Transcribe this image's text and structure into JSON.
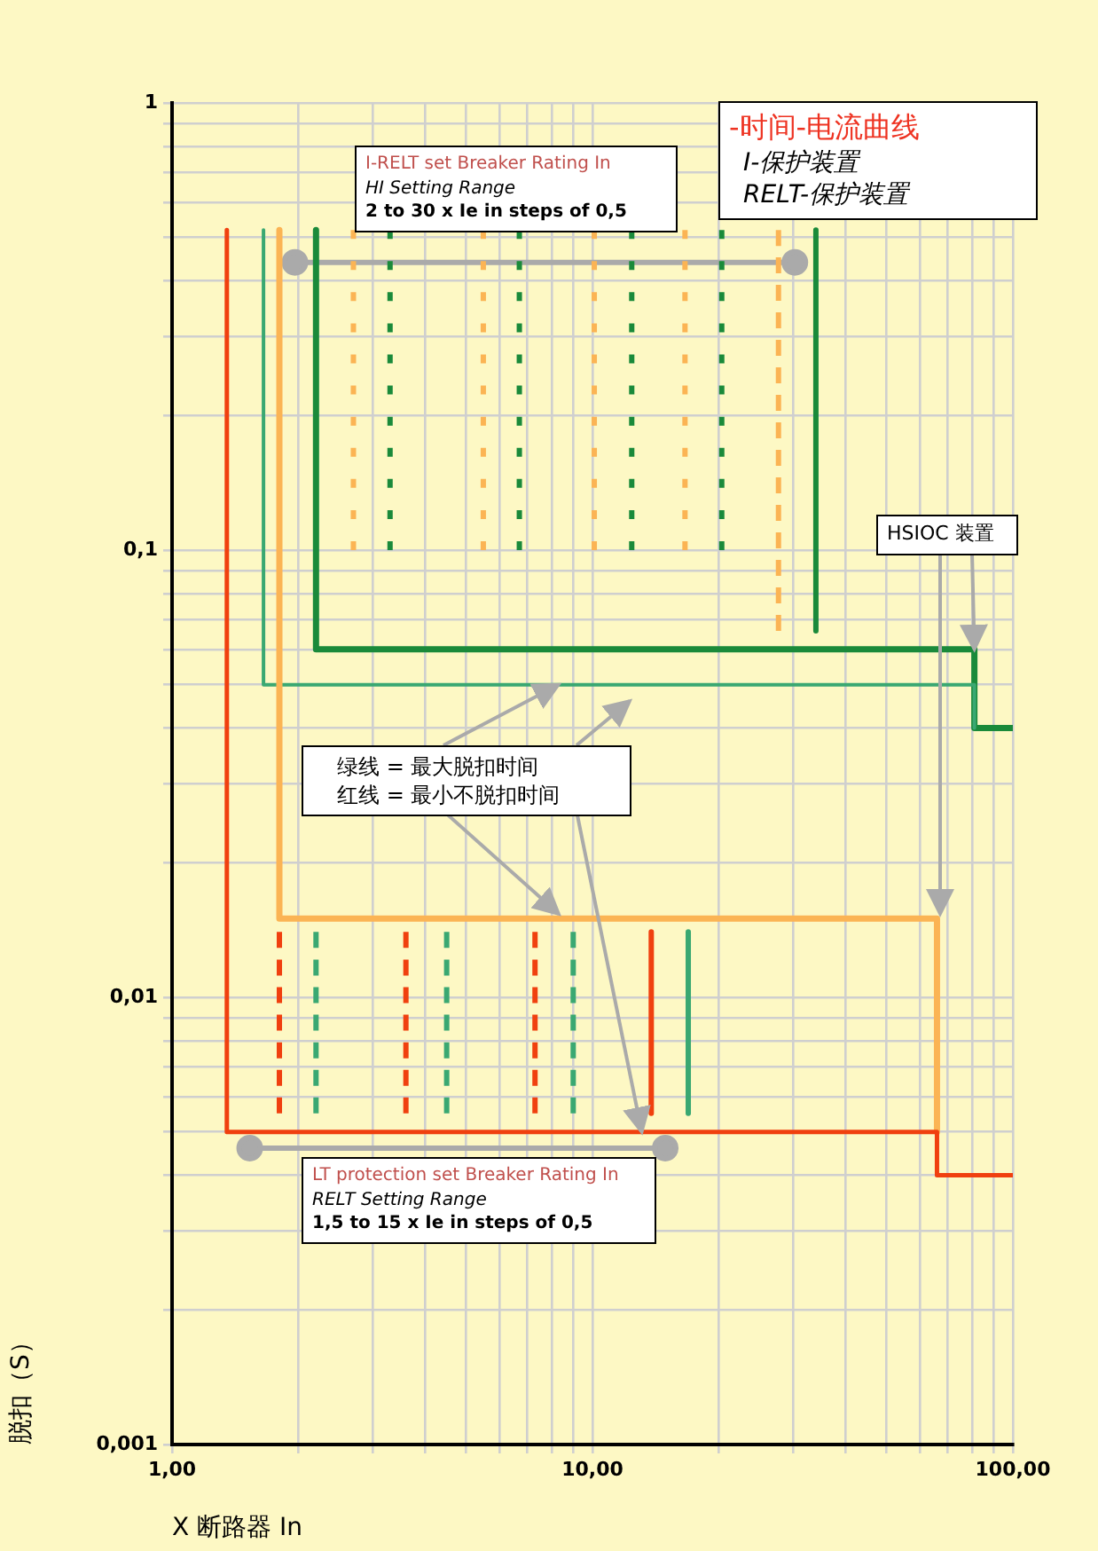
{
  "chart_data": {
    "type": "line",
    "title": "-时间-电流曲线",
    "xlabel": "X 断路器 In",
    "ylabel": "脱扣（S）",
    "annotations": [
      "I-保护装置",
      "RELT-保护装置",
      "I-RELT set Breaker Rating In",
      "HI Setting Range",
      "2 to 30 x Ie in steps of 0,5",
      {
        "text": "HSIOC 装置",
        "x": 81,
        "y": 0.06
      },
      {
        "text": "绿线 = 最大脱扣时间",
        "x": 8.3,
        "y": 0.05
      },
      {
        "text": "红线 = 最小不脱扣时间",
        "x": 13.1,
        "y": 0.005
      },
      "LT protection set  Breaker Rating In",
      "RELT Setting Range",
      "1,5 to 15 x Ie in steps of 0,5"
    ],
    "log": "xy",
    "grid": true,
    "legend": false,
    "marker": "none",
    "xlim": [
      1,
      100
    ],
    "ylim": [
      0.001,
      1
    ],
    "xticks": [
      {
        "value": 1,
        "label": "1,00"
      },
      {
        "value": 2,
        "label": null
      },
      {
        "value": 3,
        "label": null
      },
      {
        "value": 4,
        "label": null
      },
      {
        "value": 5,
        "label": null
      },
      {
        "value": 6,
        "label": null
      },
      {
        "value": 7,
        "label": null
      },
      {
        "value": 8,
        "label": null
      },
      {
        "value": 9,
        "label": null
      },
      {
        "value": 10,
        "label": "10,00"
      },
      {
        "value": 20,
        "label": null
      },
      {
        "value": 30,
        "label": null
      },
      {
        "value": 40,
        "label": null
      },
      {
        "value": 50,
        "label": null
      },
      {
        "value": 60,
        "label": null
      },
      {
        "value": 70,
        "label": null
      },
      {
        "value": 80,
        "label": null
      },
      {
        "value": 90,
        "label": null
      },
      {
        "value": 100,
        "label": "100,00"
      }
    ],
    "yticks": [
      {
        "value": 0.001,
        "label": "0,001"
      },
      {
        "value": 0.002,
        "label": null
      },
      {
        "value": 0.003,
        "label": null
      },
      {
        "value": 0.004,
        "label": null
      },
      {
        "value": 0.005,
        "label": null
      },
      {
        "value": 0.006,
        "label": null
      },
      {
        "value": 0.007,
        "label": null
      },
      {
        "value": 0.008,
        "label": null
      },
      {
        "value": 0.009,
        "label": null
      },
      {
        "value": 0.01,
        "label": "0,01"
      },
      {
        "value": 0.02,
        "label": null
      },
      {
        "value": 0.03,
        "label": null
      },
      {
        "value": 0.04,
        "label": null
      },
      {
        "value": 0.05,
        "label": null
      },
      {
        "value": 0.06,
        "label": null
      },
      {
        "value": 0.07,
        "label": null
      },
      {
        "value": 0.08,
        "label": null
      },
      {
        "value": 0.09,
        "label": null
      },
      {
        "value": 0.1,
        "label": "0,1"
      },
      {
        "value": 0.2,
        "label": null
      },
      {
        "value": 0.3,
        "label": null
      },
      {
        "value": 0.4,
        "label": null
      },
      {
        "value": 0.5,
        "label": null
      },
      {
        "value": 0.6,
        "label": null
      },
      {
        "value": 0.7,
        "label": null
      },
      {
        "value": 0.8,
        "label": null
      },
      {
        "value": 0.9,
        "label": null
      },
      {
        "value": 1,
        "label": "1"
      }
    ],
    "series": [
      {
        "type": "line",
        "color": "#f0400f",
        "x": [
          1.35,
          1.35,
          66,
          66,
          100
        ],
        "values": [
          0.52,
          0.005,
          0.005,
          0.004,
          0.004
        ]
      },
      {
        "type": "line",
        "color": "#fbb454",
        "x": [
          1.8,
          1.8,
          66,
          66
        ],
        "values": [
          0.52,
          0.015,
          0.015,
          0.005
        ]
      },
      {
        "type": "line",
        "color": "#3aa872",
        "x": [
          1.65,
          1.65,
          81,
          81
        ],
        "values": [
          0.52,
          0.05,
          0.05,
          0.04
        ]
      },
      {
        "type": "line",
        "color": "#1a8a3a",
        "x": [
          2.2,
          2.2,
          81,
          81,
          100
        ],
        "values": [
          0.52,
          0.06,
          0.06,
          0.04,
          0.04
        ]
      },
      {
        "type": "line",
        "color": "#1a8a3a",
        "x": [
          34,
          34
        ],
        "values": [
          0.52,
          0.066
        ]
      },
      {
        "type": "line",
        "color": "#fbb454",
        "line_style": "dashed",
        "x": [
          27.7,
          27.7
        ],
        "values": [
          0.52,
          0.066
        ]
      },
      {
        "type": "line",
        "color": "#fbb454",
        "line_style": "dotted",
        "x": [
          2.7,
          2.7
        ],
        "values": [
          0.52,
          0.1
        ]
      },
      {
        "type": "line",
        "color": "#fbb454",
        "line_style": "dotted",
        "x": [
          5.5,
          5.5
        ],
        "values": [
          0.52,
          0.1
        ]
      },
      {
        "type": "line",
        "color": "#fbb454",
        "line_style": "dotted",
        "x": [
          10.1,
          10.1
        ],
        "values": [
          0.52,
          0.1
        ]
      },
      {
        "type": "line",
        "color": "#fbb454",
        "line_style": "dotted",
        "x": [
          16.6,
          16.6
        ],
        "values": [
          0.52,
          0.1
        ]
      },
      {
        "type": "line",
        "color": "#1a8a3a",
        "line_style": "dotted",
        "x": [
          3.3,
          3.3
        ],
        "values": [
          0.52,
          0.1
        ]
      },
      {
        "type": "line",
        "color": "#1a8a3a",
        "line_style": "dotted",
        "x": [
          6.7,
          6.7
        ],
        "values": [
          0.52,
          0.1
        ]
      },
      {
        "type": "line",
        "color": "#1a8a3a",
        "line_style": "dotted",
        "x": [
          12.4,
          12.4
        ],
        "values": [
          0.52,
          0.1
        ]
      },
      {
        "type": "line",
        "color": "#1a8a3a",
        "line_style": "dotted",
        "x": [
          20.3,
          20.3
        ],
        "values": [
          0.52,
          0.1
        ]
      },
      {
        "type": "line",
        "color": "#f0400f",
        "line_style": "dashed",
        "x": [
          1.8,
          1.8
        ],
        "values": [
          0.014,
          0.0055
        ]
      },
      {
        "type": "line",
        "color": "#f0400f",
        "line_style": "dashed",
        "x": [
          3.6,
          3.6
        ],
        "values": [
          0.014,
          0.0055
        ]
      },
      {
        "type": "line",
        "color": "#f0400f",
        "line_style": "dashed",
        "x": [
          7.3,
          7.3
        ],
        "values": [
          0.014,
          0.0055
        ]
      },
      {
        "type": "line",
        "color": "#3aa872",
        "line_style": "dashed",
        "x": [
          2.2,
          2.2
        ],
        "values": [
          0.014,
          0.0055
        ]
      },
      {
        "type": "line",
        "color": "#3aa872",
        "line_style": "dashed",
        "x": [
          4.5,
          4.5
        ],
        "values": [
          0.014,
          0.0055
        ]
      },
      {
        "type": "line",
        "color": "#3aa872",
        "line_style": "dashed",
        "x": [
          9,
          9
        ],
        "values": [
          0.014,
          0.0055
        ]
      },
      {
        "type": "line",
        "color": "#f0400f",
        "x": [
          13.8,
          13.8
        ],
        "values": [
          0.014,
          0.0055
        ]
      },
      {
        "type": "line",
        "color": "#3aa872",
        "x": [
          16.9,
          16.9
        ],
        "values": [
          0.014,
          0.0055
        ]
      },
      {
        "type": "line",
        "color": "#aaaaaa",
        "marker": "circle",
        "x": [
          1.96,
          30.3
        ],
        "values": [
          0.44,
          0.44
        ]
      },
      {
        "type": "line",
        "color": "#aaaaaa",
        "marker": "circle",
        "x": [
          1.53,
          14.9
        ],
        "values": [
          0.0046,
          0.0046
        ]
      }
    ]
  }
}
